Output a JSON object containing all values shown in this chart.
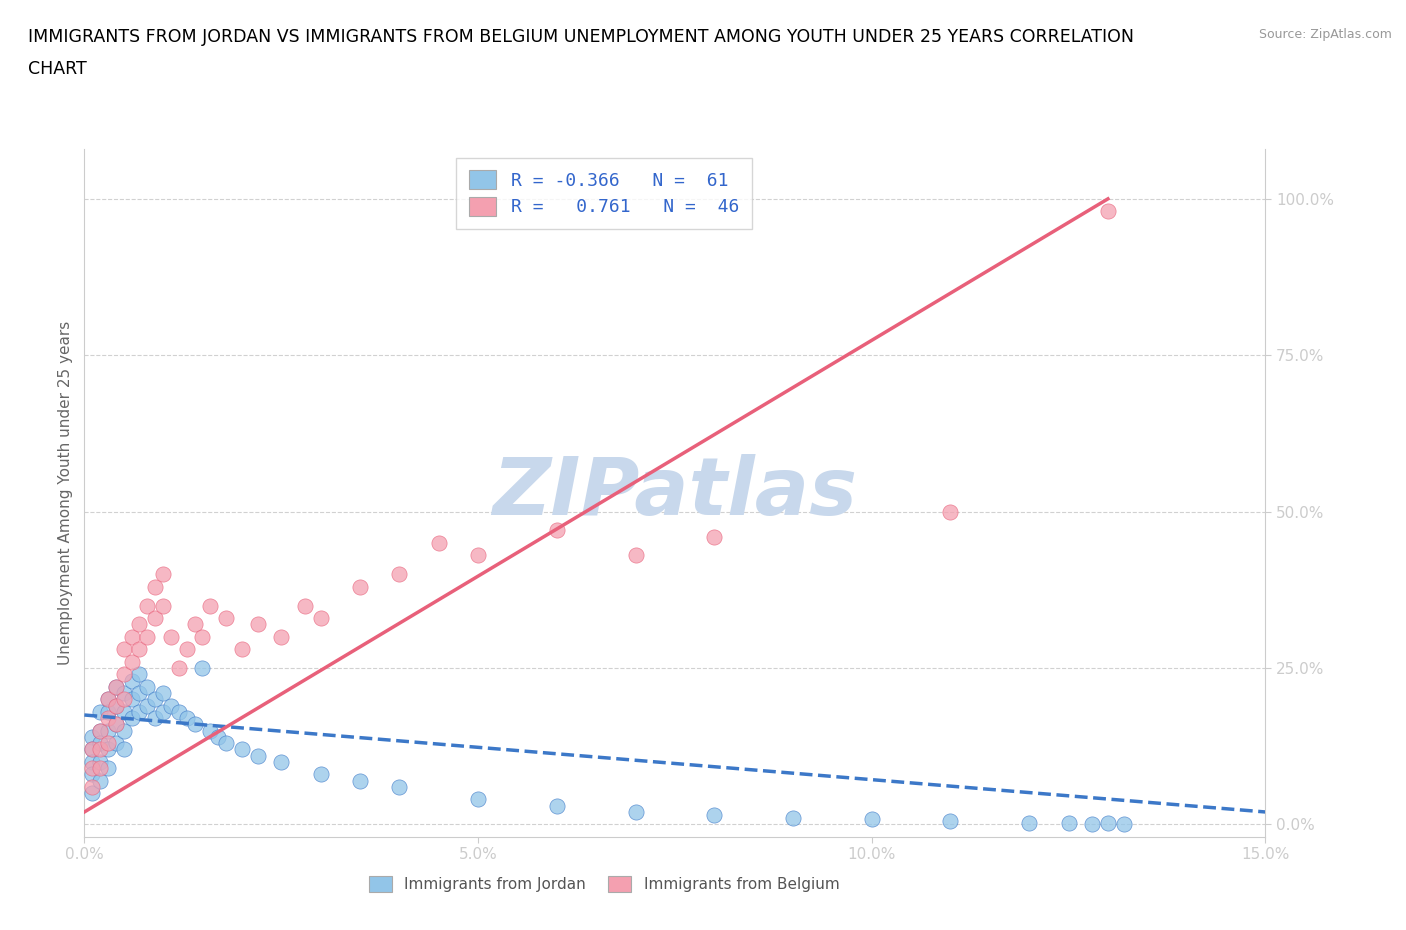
{
  "title_line1": "IMMIGRANTS FROM JORDAN VS IMMIGRANTS FROM BELGIUM UNEMPLOYMENT AMONG YOUTH UNDER 25 YEARS CORRELATION",
  "title_line2": "CHART",
  "source": "Source: ZipAtlas.com",
  "ylabel": "Unemployment Among Youth under 25 years",
  "xlim": [
    0.0,
    0.15
  ],
  "ylim": [
    -0.02,
    1.08
  ],
  "xticks": [
    0.0,
    0.05,
    0.1,
    0.15
  ],
  "xtick_labels": [
    "0.0%",
    "5.0%",
    "10.0%",
    "15.0%"
  ],
  "yticks": [
    0.0,
    0.25,
    0.5,
    0.75,
    1.0
  ],
  "ytick_labels": [
    "0.0%",
    "25.0%",
    "50.0%",
    "75.0%",
    "100.0%"
  ],
  "jordan_color": "#92c5e8",
  "belgium_color": "#f4a0b0",
  "jordan_R": -0.366,
  "jordan_N": 61,
  "belgium_R": 0.761,
  "belgium_N": 46,
  "jordan_line_color": "#3c78c8",
  "belgium_line_color": "#e8607a",
  "watermark": "ZIPatlas",
  "watermark_color": "#c8d8ec",
  "legend_R_color": "#3366cc",
  "background_color": "#ffffff",
  "grid_color": "#cccccc",
  "axis_color": "#cccccc",
  "tick_color": "#4472c4",
  "title_fontsize": 12.5,
  "axis_label_fontsize": 11,
  "tick_fontsize": 11,
  "jordan_scatter_x": [
    0.001,
    0.001,
    0.001,
    0.001,
    0.001,
    0.002,
    0.002,
    0.002,
    0.002,
    0.002,
    0.003,
    0.003,
    0.003,
    0.003,
    0.003,
    0.004,
    0.004,
    0.004,
    0.004,
    0.005,
    0.005,
    0.005,
    0.005,
    0.006,
    0.006,
    0.006,
    0.007,
    0.007,
    0.007,
    0.008,
    0.008,
    0.009,
    0.009,
    0.01,
    0.01,
    0.011,
    0.012,
    0.013,
    0.014,
    0.015,
    0.016,
    0.017,
    0.018,
    0.02,
    0.022,
    0.025,
    0.03,
    0.035,
    0.04,
    0.05,
    0.06,
    0.07,
    0.08,
    0.09,
    0.1,
    0.11,
    0.12,
    0.125,
    0.128,
    0.13,
    0.132
  ],
  "jordan_scatter_y": [
    0.14,
    0.12,
    0.1,
    0.08,
    0.05,
    0.18,
    0.15,
    0.13,
    0.1,
    0.07,
    0.2,
    0.18,
    0.15,
    0.12,
    0.09,
    0.22,
    0.19,
    0.16,
    0.13,
    0.21,
    0.18,
    0.15,
    0.12,
    0.23,
    0.2,
    0.17,
    0.24,
    0.21,
    0.18,
    0.22,
    0.19,
    0.2,
    0.17,
    0.21,
    0.18,
    0.19,
    0.18,
    0.17,
    0.16,
    0.25,
    0.15,
    0.14,
    0.13,
    0.12,
    0.11,
    0.1,
    0.08,
    0.07,
    0.06,
    0.04,
    0.03,
    0.02,
    0.015,
    0.01,
    0.008,
    0.005,
    0.003,
    0.002,
    0.001,
    0.002,
    0.001
  ],
  "belgium_scatter_x": [
    0.001,
    0.001,
    0.001,
    0.002,
    0.002,
    0.002,
    0.003,
    0.003,
    0.003,
    0.004,
    0.004,
    0.004,
    0.005,
    0.005,
    0.005,
    0.006,
    0.006,
    0.007,
    0.007,
    0.008,
    0.008,
    0.009,
    0.009,
    0.01,
    0.01,
    0.011,
    0.012,
    0.013,
    0.014,
    0.015,
    0.016,
    0.018,
    0.02,
    0.022,
    0.025,
    0.028,
    0.03,
    0.035,
    0.04,
    0.045,
    0.05,
    0.06,
    0.07,
    0.08,
    0.11,
    0.13
  ],
  "belgium_scatter_y": [
    0.12,
    0.09,
    0.06,
    0.15,
    0.12,
    0.09,
    0.2,
    0.17,
    0.13,
    0.22,
    0.19,
    0.16,
    0.28,
    0.24,
    0.2,
    0.3,
    0.26,
    0.32,
    0.28,
    0.35,
    0.3,
    0.38,
    0.33,
    0.4,
    0.35,
    0.3,
    0.25,
    0.28,
    0.32,
    0.3,
    0.35,
    0.33,
    0.28,
    0.32,
    0.3,
    0.35,
    0.33,
    0.38,
    0.4,
    0.45,
    0.43,
    0.47,
    0.43,
    0.46,
    0.5,
    0.98
  ],
  "jordan_trend_x": [
    0.0,
    0.15
  ],
  "jordan_trend_y": [
    0.175,
    0.02
  ],
  "belgium_trend_x": [
    0.0,
    0.13
  ],
  "belgium_trend_y": [
    0.02,
    1.0
  ]
}
